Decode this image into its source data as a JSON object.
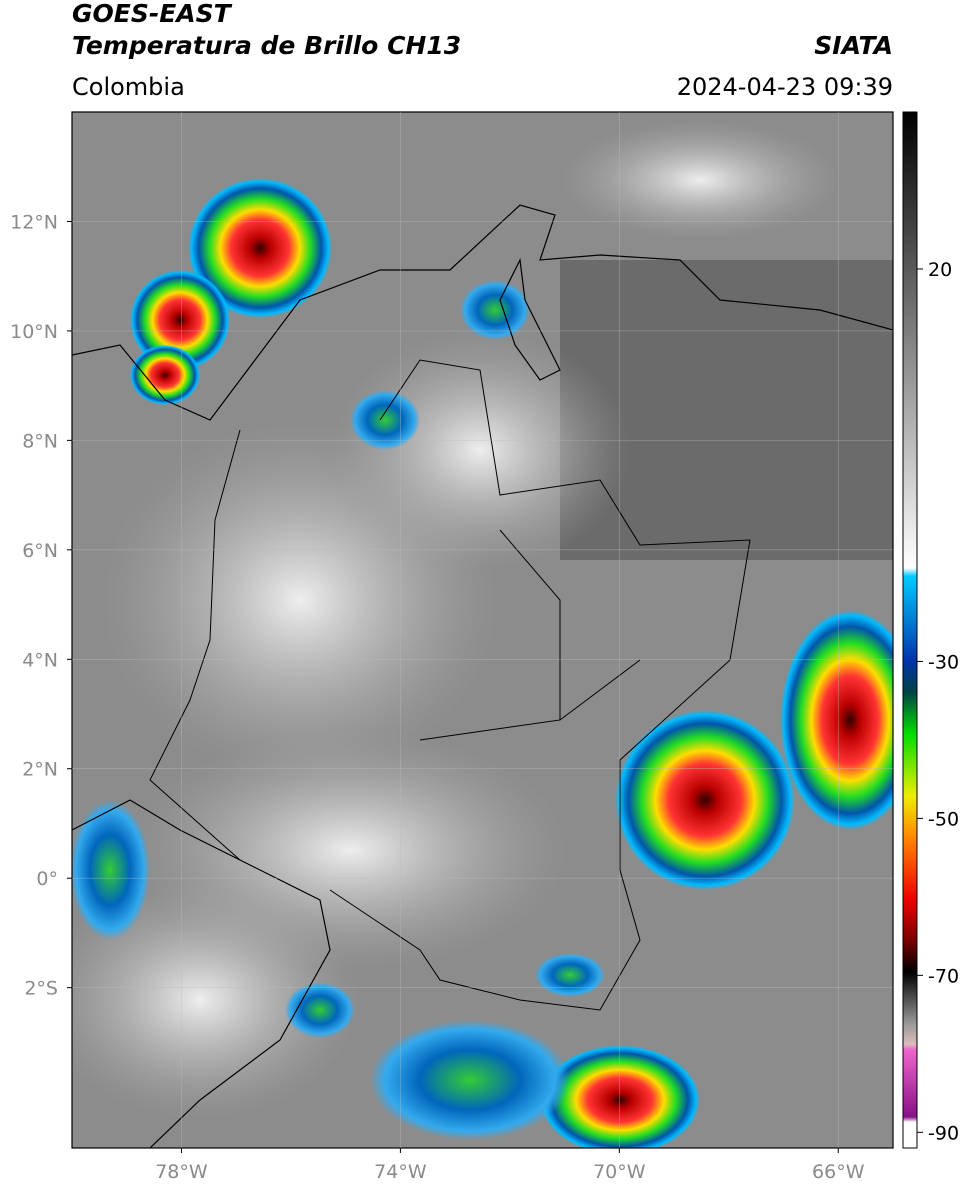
{
  "header": {
    "title_line1": "GOES-EAST",
    "title_line2": "Temperatura de Brillo CH13",
    "source": "SIATA",
    "region": "Colombia",
    "timestamp": "2024-04-23 09:39"
  },
  "map": {
    "lon_range": [
      -80,
      -65
    ],
    "lat_range": [
      -4.93,
      14
    ],
    "lat_ticks": [
      {
        "value": 12,
        "label": "12°N"
      },
      {
        "value": 10,
        "label": "10°N"
      },
      {
        "value": 8,
        "label": "8°N"
      },
      {
        "value": 6,
        "label": "6°N"
      },
      {
        "value": 4,
        "label": "4°N"
      },
      {
        "value": 2,
        "label": "2°N"
      },
      {
        "value": 0,
        "label": "0°"
      },
      {
        "value": -2,
        "label": "2°S"
      }
    ],
    "lon_ticks": [
      {
        "value": -78,
        "label": "78°W"
      },
      {
        "value": -74,
        "label": "74°W"
      },
      {
        "value": -70,
        "label": "70°W"
      },
      {
        "value": -66,
        "label": "66°W"
      }
    ]
  },
  "colorbar": {
    "range": [
      -92,
      40
    ],
    "ticks": [
      20,
      -30,
      -50,
      -70,
      -90
    ]
  }
}
